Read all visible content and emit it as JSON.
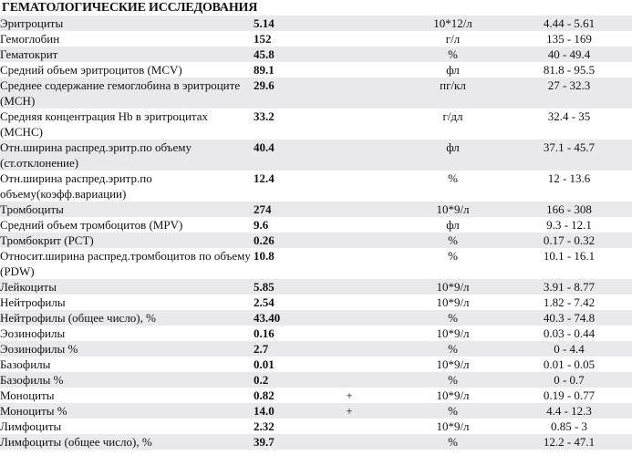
{
  "title": "ГЕМАТОЛОГИЧЕСКИЕ ИССЛЕДОВАНИЯ",
  "rows": [
    {
      "name": "Эритроциты",
      "value": "5.14",
      "flag": "",
      "unit": "10*12/л",
      "range": "4.44 - 5.61"
    },
    {
      "name": "Гемоглобин",
      "value": "152",
      "flag": "",
      "unit": "г/л",
      "range": "135 - 169"
    },
    {
      "name": "Гематокрит",
      "value": "45.8",
      "flag": "",
      "unit": "%",
      "range": "40 - 49.4"
    },
    {
      "name": "Средний объем эритроцитов (MCV)",
      "value": "89.1",
      "flag": "",
      "unit": "фл",
      "range": "81.8 - 95.5"
    },
    {
      "name": "Среднее содержание гемоглобина в эритроците (MCH)",
      "value": "29.6",
      "flag": "",
      "unit": "пг/кл",
      "range": "27 - 32.3"
    },
    {
      "name": "Средняя концентрация Hb в эритроцитах (MCHC)",
      "value": "33.2",
      "flag": "",
      "unit": "г/дл",
      "range": "32.4 - 35"
    },
    {
      "name": "Отн.ширина распред.эритр.по объему (ст.отклонение)",
      "value": "40.4",
      "flag": "",
      "unit": "фл",
      "range": "37.1 - 45.7"
    },
    {
      "name": "Отн.ширина распред.эритр.по объему(коэфф.вариации)",
      "value": "12.4",
      "flag": "",
      "unit": "%",
      "range": "12 - 13.6"
    },
    {
      "name": "Тромбоциты",
      "value": "274",
      "flag": "",
      "unit": "10*9/л",
      "range": "166 - 308"
    },
    {
      "name": "Средний объем тромбоцитов (MPV)",
      "value": "9.6",
      "flag": "",
      "unit": "фл",
      "range": "9.3 - 12.1"
    },
    {
      "name": "Тромбокрит (PCT)",
      "value": "0.26",
      "flag": "",
      "unit": "%",
      "range": "0.17 - 0.32"
    },
    {
      "name": "Относит.ширина распред.тромбоцитов по объему (PDW)",
      "value": "10.8",
      "flag": "",
      "unit": "%",
      "range": "10.1 - 16.1"
    },
    {
      "name": "Лейкоциты",
      "value": "5.85",
      "flag": "",
      "unit": "10*9/л",
      "range": "3.91 - 8.77"
    },
    {
      "name": "Нейтрофилы",
      "value": "2.54",
      "flag": "",
      "unit": "10*9/л",
      "range": "1.82 - 7.42"
    },
    {
      "name": "Нейтрофилы (общее число), %",
      "value": "43.40",
      "flag": "",
      "unit": "%",
      "range": "40.3 - 74.8"
    },
    {
      "name": "Эозинофилы",
      "value": "0.16",
      "flag": "",
      "unit": "10*9/л",
      "range": "0.03 - 0.44"
    },
    {
      "name": "Эозинофилы %",
      "value": "2.7",
      "flag": "",
      "unit": "%",
      "range": "0 - 4.4"
    },
    {
      "name": "Базофилы",
      "value": "0.01",
      "flag": "",
      "unit": "10*9/л",
      "range": "0.01 - 0.05"
    },
    {
      "name": "Базофилы %",
      "value": "0.2",
      "flag": "",
      "unit": "%",
      "range": "0 - 0.7"
    },
    {
      "name": "Моноциты",
      "value": "0.82",
      "flag": "+",
      "unit": "10*9/л",
      "range": "0.19 - 0.77"
    },
    {
      "name": "Моноциты %",
      "value": "14.0",
      "flag": "+",
      "unit": "%",
      "range": "4.4 - 12.3"
    },
    {
      "name": "Лимфоциты",
      "value": "2.32",
      "flag": "",
      "unit": "10*9/л",
      "range": "0.85 - 3"
    },
    {
      "name": "Лимфоциты (общее число), %",
      "value": "39.7",
      "flag": "",
      "unit": "%",
      "range": "12.2 - 47.1"
    }
  ]
}
